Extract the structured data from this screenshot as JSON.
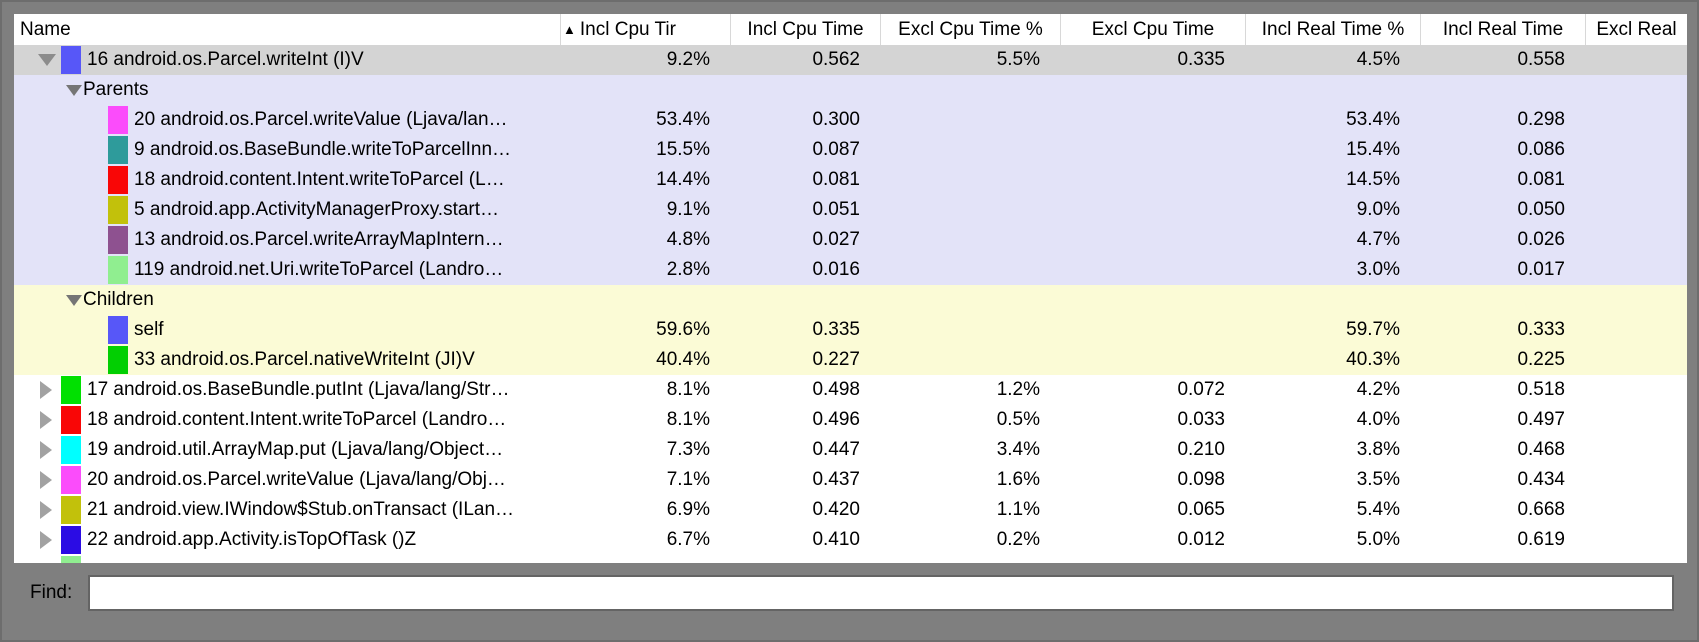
{
  "table": {
    "sort_icon": "▲",
    "columns": [
      {
        "label": "Name"
      },
      {
        "label": "Incl Cpu Tir",
        "sorted": true
      },
      {
        "label": "Incl Cpu Time"
      },
      {
        "label": "Excl Cpu Time %"
      },
      {
        "label": "Excl Cpu Time"
      },
      {
        "label": "Incl Real Time %"
      },
      {
        "label": "Incl Real Time"
      },
      {
        "label": "Excl Real"
      }
    ],
    "column_keys": [
      "incl-cpu-time-pct",
      "incl-cpu-time",
      "excl-cpu-time-pct",
      "excl-cpu-time",
      "incl-real-time-pct",
      "incl-real-time",
      "excl-real-time"
    ],
    "rows": [
      {
        "type": "main",
        "expanded": true,
        "selected": true,
        "icon": "#5757f8",
        "name": "16 android.os.Parcel.writeInt (I)V",
        "bg": "selected",
        "values": [
          "9.2%",
          "0.562",
          "5.5%",
          "0.335",
          "4.5%",
          "0.558",
          ""
        ]
      },
      {
        "type": "section",
        "name": "Parents",
        "bg": "lavender",
        "values": [
          "",
          "",
          "",
          "",
          "",
          "",
          ""
        ]
      },
      {
        "type": "sub",
        "icon": "#fb4cfb",
        "name": "20 android.os.Parcel.writeValue (Ljava/lan…",
        "bg": "lavender",
        "values": [
          "53.4%",
          "0.300",
          "",
          "",
          "53.4%",
          "0.298",
          ""
        ]
      },
      {
        "type": "sub",
        "icon": "#2e9b9b",
        "name": "9 android.os.BaseBundle.writeToParcelInn…",
        "bg": "lavender",
        "values": [
          "15.5%",
          "0.087",
          "",
          "",
          "15.4%",
          "0.086",
          ""
        ]
      },
      {
        "type": "sub",
        "icon": "#f90606",
        "name": "18 android.content.Intent.writeToParcel (L…",
        "bg": "lavender",
        "values": [
          "14.4%",
          "0.081",
          "",
          "",
          "14.5%",
          "0.081",
          ""
        ]
      },
      {
        "type": "sub",
        "icon": "#c2c10b",
        "name": "5 android.app.ActivityManagerProxy.start…",
        "bg": "lavender",
        "values": [
          "9.1%",
          "0.051",
          "",
          "",
          "9.0%",
          "0.050",
          ""
        ]
      },
      {
        "type": "sub",
        "icon": "#8e5190",
        "name": "13 android.os.Parcel.writeArrayMapIntern…",
        "bg": "lavender",
        "values": [
          "4.8%",
          "0.027",
          "",
          "",
          "4.7%",
          "0.026",
          ""
        ]
      },
      {
        "type": "sub",
        "icon": "#90ee90",
        "name": "119 android.net.Uri.writeToParcel (Landro…",
        "bg": "lavender",
        "values": [
          "2.8%",
          "0.016",
          "",
          "",
          "3.0%",
          "0.017",
          ""
        ]
      },
      {
        "type": "section",
        "name": "Children",
        "bg": "yellow",
        "values": [
          "",
          "",
          "",
          "",
          "",
          "",
          ""
        ]
      },
      {
        "type": "sub",
        "icon": "#5757f8",
        "name": "self",
        "bg": "yellow",
        "values": [
          "59.6%",
          "0.335",
          "",
          "",
          "59.7%",
          "0.333",
          ""
        ]
      },
      {
        "type": "sub",
        "icon": "#02cf02",
        "name": "33 android.os.Parcel.nativeWriteInt (JI)V",
        "bg": "yellow",
        "values": [
          "40.4%",
          "0.227",
          "",
          "",
          "40.3%",
          "0.225",
          ""
        ]
      },
      {
        "type": "main",
        "expanded": false,
        "icon": "#01e001",
        "name": "17 android.os.BaseBundle.putInt (Ljava/lang/Str…",
        "bg": "white",
        "values": [
          "8.1%",
          "0.498",
          "1.2%",
          "0.072",
          "4.2%",
          "0.518",
          ""
        ]
      },
      {
        "type": "main",
        "expanded": false,
        "icon": "#f90606",
        "name": "18 android.content.Intent.writeToParcel (Landro…",
        "bg": "white",
        "values": [
          "8.1%",
          "0.496",
          "0.5%",
          "0.033",
          "4.0%",
          "0.497",
          ""
        ]
      },
      {
        "type": "main",
        "expanded": false,
        "icon": "#00ffff",
        "name": "19 android.util.ArrayMap.put (Ljava/lang/Object…",
        "bg": "white",
        "values": [
          "7.3%",
          "0.447",
          "3.4%",
          "0.210",
          "3.8%",
          "0.468",
          ""
        ]
      },
      {
        "type": "main",
        "expanded": false,
        "icon": "#fb4cfb",
        "name": "20 android.os.Parcel.writeValue (Ljava/lang/Obj…",
        "bg": "white",
        "values": [
          "7.1%",
          "0.437",
          "1.6%",
          "0.098",
          "3.5%",
          "0.434",
          ""
        ]
      },
      {
        "type": "main",
        "expanded": false,
        "icon": "#c2c10b",
        "name": "21 android.view.IWindow$Stub.onTransact (ILan…",
        "bg": "white",
        "values": [
          "6.9%",
          "0.420",
          "1.1%",
          "0.065",
          "5.4%",
          "0.668",
          ""
        ]
      },
      {
        "type": "main",
        "expanded": false,
        "icon": "#2b0ce4",
        "name": "22 android.app.Activity.isTopOfTask ()Z",
        "bg": "white",
        "values": [
          "6.7%",
          "0.410",
          "0.2%",
          "0.012",
          "5.0%",
          "0.619",
          ""
        ]
      },
      {
        "type": "partial",
        "icon": "#90ee90",
        "name": "",
        "bg": "white",
        "values": [
          "",
          "",
          "",
          "",
          "",
          "",
          ""
        ]
      }
    ]
  },
  "colors": {
    "window_bg": "#7f7f7f",
    "selected_row": "#d4d4d4",
    "parents_section": "#e3e3f8",
    "children_section": "#fbfbd6"
  },
  "find": {
    "label": "Find:",
    "value": ""
  }
}
